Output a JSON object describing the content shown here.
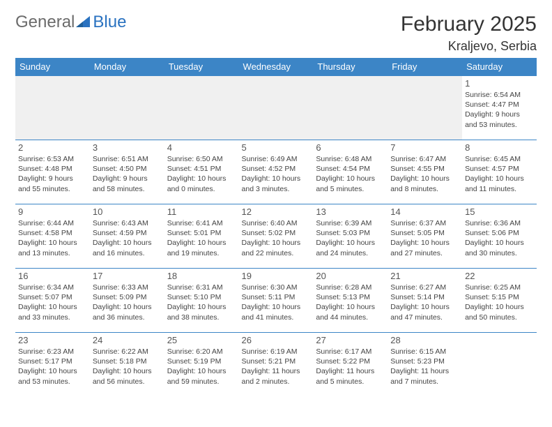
{
  "brand": {
    "word1": "General",
    "word2": "Blue"
  },
  "title": "February 2025",
  "location": "Kraljevo, Serbia",
  "colors": {
    "header_bg": "#3c85c6",
    "header_text": "#ffffff",
    "rule": "#3c85c6",
    "logo_gray": "#6b6b6b",
    "logo_blue": "#2a72c0",
    "body_text": "#333333",
    "nonday_bg": "#f0f0f0"
  },
  "weekdays": [
    "Sunday",
    "Monday",
    "Tuesday",
    "Wednesday",
    "Thursday",
    "Friday",
    "Saturday"
  ],
  "weeks": [
    [
      null,
      null,
      null,
      null,
      null,
      null,
      {
        "n": "1",
        "sunrise": "6:54 AM",
        "sunset": "4:47 PM",
        "dl": "9 hours and 53 minutes."
      }
    ],
    [
      {
        "n": "2",
        "sunrise": "6:53 AM",
        "sunset": "4:48 PM",
        "dl": "9 hours and 55 minutes."
      },
      {
        "n": "3",
        "sunrise": "6:51 AM",
        "sunset": "4:50 PM",
        "dl": "9 hours and 58 minutes."
      },
      {
        "n": "4",
        "sunrise": "6:50 AM",
        "sunset": "4:51 PM",
        "dl": "10 hours and 0 minutes."
      },
      {
        "n": "5",
        "sunrise": "6:49 AM",
        "sunset": "4:52 PM",
        "dl": "10 hours and 3 minutes."
      },
      {
        "n": "6",
        "sunrise": "6:48 AM",
        "sunset": "4:54 PM",
        "dl": "10 hours and 5 minutes."
      },
      {
        "n": "7",
        "sunrise": "6:47 AM",
        "sunset": "4:55 PM",
        "dl": "10 hours and 8 minutes."
      },
      {
        "n": "8",
        "sunrise": "6:45 AM",
        "sunset": "4:57 PM",
        "dl": "10 hours and 11 minutes."
      }
    ],
    [
      {
        "n": "9",
        "sunrise": "6:44 AM",
        "sunset": "4:58 PM",
        "dl": "10 hours and 13 minutes."
      },
      {
        "n": "10",
        "sunrise": "6:43 AM",
        "sunset": "4:59 PM",
        "dl": "10 hours and 16 minutes."
      },
      {
        "n": "11",
        "sunrise": "6:41 AM",
        "sunset": "5:01 PM",
        "dl": "10 hours and 19 minutes."
      },
      {
        "n": "12",
        "sunrise": "6:40 AM",
        "sunset": "5:02 PM",
        "dl": "10 hours and 22 minutes."
      },
      {
        "n": "13",
        "sunrise": "6:39 AM",
        "sunset": "5:03 PM",
        "dl": "10 hours and 24 minutes."
      },
      {
        "n": "14",
        "sunrise": "6:37 AM",
        "sunset": "5:05 PM",
        "dl": "10 hours and 27 minutes."
      },
      {
        "n": "15",
        "sunrise": "6:36 AM",
        "sunset": "5:06 PM",
        "dl": "10 hours and 30 minutes."
      }
    ],
    [
      {
        "n": "16",
        "sunrise": "6:34 AM",
        "sunset": "5:07 PM",
        "dl": "10 hours and 33 minutes."
      },
      {
        "n": "17",
        "sunrise": "6:33 AM",
        "sunset": "5:09 PM",
        "dl": "10 hours and 36 minutes."
      },
      {
        "n": "18",
        "sunrise": "6:31 AM",
        "sunset": "5:10 PM",
        "dl": "10 hours and 38 minutes."
      },
      {
        "n": "19",
        "sunrise": "6:30 AM",
        "sunset": "5:11 PM",
        "dl": "10 hours and 41 minutes."
      },
      {
        "n": "20",
        "sunrise": "6:28 AM",
        "sunset": "5:13 PM",
        "dl": "10 hours and 44 minutes."
      },
      {
        "n": "21",
        "sunrise": "6:27 AM",
        "sunset": "5:14 PM",
        "dl": "10 hours and 47 minutes."
      },
      {
        "n": "22",
        "sunrise": "6:25 AM",
        "sunset": "5:15 PM",
        "dl": "10 hours and 50 minutes."
      }
    ],
    [
      {
        "n": "23",
        "sunrise": "6:23 AM",
        "sunset": "5:17 PM",
        "dl": "10 hours and 53 minutes."
      },
      {
        "n": "24",
        "sunrise": "6:22 AM",
        "sunset": "5:18 PM",
        "dl": "10 hours and 56 minutes."
      },
      {
        "n": "25",
        "sunrise": "6:20 AM",
        "sunset": "5:19 PM",
        "dl": "10 hours and 59 minutes."
      },
      {
        "n": "26",
        "sunrise": "6:19 AM",
        "sunset": "5:21 PM",
        "dl": "11 hours and 2 minutes."
      },
      {
        "n": "27",
        "sunrise": "6:17 AM",
        "sunset": "5:22 PM",
        "dl": "11 hours and 5 minutes."
      },
      {
        "n": "28",
        "sunrise": "6:15 AM",
        "sunset": "5:23 PM",
        "dl": "11 hours and 7 minutes."
      },
      null
    ]
  ],
  "labels": {
    "sunrise": "Sunrise: ",
    "sunset": "Sunset: ",
    "daylight": "Daylight: "
  }
}
